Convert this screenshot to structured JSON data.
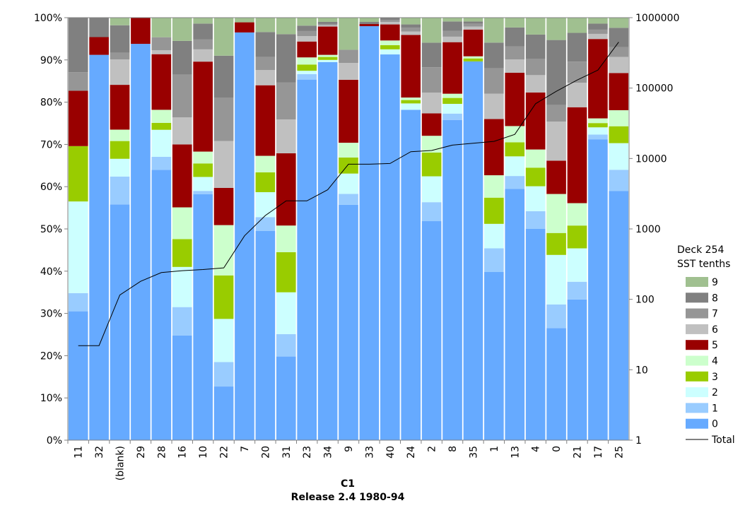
{
  "chart_data": {
    "type": "bar",
    "stacked": "percent",
    "xlabel": "C1",
    "subtitle": "Release 2.4 1980-94",
    "categories": [
      "11",
      "32",
      "(blank)",
      "29",
      "28",
      "16",
      "10",
      "22",
      "7",
      "20",
      "31",
      "23",
      "34",
      "9",
      "33",
      "40",
      "24",
      "2",
      "8",
      "35",
      "1",
      "13",
      "4",
      "0",
      "21",
      "17",
      "25"
    ],
    "legend_title": [
      "Deck 254",
      "SST tenths"
    ],
    "legend_placement": "right",
    "y_left_ticks": [
      "0%",
      "10%",
      "20%",
      "30%",
      "40%",
      "50%",
      "60%",
      "70%",
      "80%",
      "90%",
      "100%"
    ],
    "y_right_ticks": [
      "1",
      "10",
      "100",
      "1000",
      "10000",
      "100000",
      "1000000"
    ],
    "y_right_scale": "log",
    "y_right_lim": [
      1,
      1000000
    ],
    "grid": false,
    "series": [
      {
        "name": "0",
        "color": "#66aaff",
        "values": [
          30.5,
          91.2,
          55.8,
          93.8,
          62.2,
          24.8,
          58.2,
          12.7,
          96.5,
          49.5,
          19.8,
          86.2,
          89.5,
          55.7,
          97.5,
          91.3,
          78.2,
          50.8,
          75.8,
          89.2,
          39.8,
          58.9,
          50.0,
          27.6,
          33.3,
          70.5,
          59.0
        ]
      },
      {
        "name": "1",
        "color": "#99ccff",
        "values": [
          4.3,
          0,
          6.6,
          0,
          3.0,
          6.7,
          0.8,
          5.8,
          0,
          3.3,
          5.3,
          1.3,
          0,
          2.6,
          0,
          0,
          0,
          4.4,
          1.5,
          0,
          5.6,
          3.0,
          4.2,
          5.8,
          4.2,
          1.1,
          5.0
        ]
      },
      {
        "name": "2",
        "color": "#ccffff",
        "values": [
          21.7,
          0,
          4.2,
          0,
          6.2,
          9.5,
          3.3,
          10.2,
          0,
          5.9,
          9.9,
          0.8,
          0.5,
          4.8,
          0,
          1.2,
          1.5,
          6.0,
          2.3,
          0,
          5.8,
          4.6,
          5.9,
          12.2,
          7.9,
          1.7,
          6.3
        ]
      },
      {
        "name": "3",
        "color": "#99cc00",
        "values": [
          13.1,
          0,
          4.2,
          0,
          1.6,
          6.6,
          3.2,
          10.3,
          0,
          4.7,
          9.5,
          1.5,
          0.7,
          3.8,
          0,
          1.0,
          0.8,
          5.5,
          1.4,
          0.7,
          6.2,
          3.3,
          4.4,
          5.4,
          5.4,
          1.0,
          4.0
        ]
      },
      {
        "name": "4",
        "color": "#ccffcc",
        "values": [
          0,
          0,
          2.7,
          0,
          3.0,
          7.5,
          2.8,
          11.9,
          0,
          3.9,
          6.3,
          1.7,
          0.5,
          3.5,
          0,
          1.1,
          0.6,
          3.9,
          1.0,
          0.5,
          5.3,
          3.8,
          4.3,
          9.6,
          5.3,
          1.1,
          3.8
        ]
      },
      {
        "name": "5",
        "color": "#990000",
        "values": [
          13.1,
          4.2,
          10.6,
          6.2,
          12.8,
          14.9,
          21.3,
          8.8,
          2.4,
          16.7,
          17.1,
          3.8,
          6.7,
          14.9,
          0.5,
          3.8,
          14.8,
          5.2,
          12.2,
          6.3,
          13.3,
          12.5,
          13.5,
          8.2,
          22.7,
          18.6,
          8.8
        ]
      },
      {
        "name": "6",
        "color": "#c0c0c0",
        "values": [
          0,
          0,
          6.0,
          0,
          0.9,
          6.4,
          2.9,
          11.1,
          0,
          3.6,
          8.0,
          1.3,
          0.3,
          4.0,
          0,
          0.6,
          0.8,
          4.8,
          1.3,
          0.7,
          6.0,
          3.1,
          4.1,
          9.6,
          5.8,
          1.2,
          3.8
        ]
      },
      {
        "name": "7",
        "color": "#969696",
        "values": [
          4.4,
          0,
          1.6,
          0,
          3.0,
          10.1,
          2.4,
          10.3,
          0,
          3.1,
          8.8,
          1.2,
          0.3,
          3.1,
          0,
          0.5,
          0.9,
          5.9,
          1.4,
          0.7,
          6.0,
          3.1,
          3.9,
          4.1,
          5.0,
          1.0,
          2.3
        ]
      },
      {
        "name": "8",
        "color": "#808080",
        "values": [
          12.9,
          4.6,
          6.5,
          0,
          0,
          8.0,
          3.7,
          9.9,
          0,
          5.9,
          11.4,
          1.3,
          0.5,
          0,
          0.5,
          0.5,
          0.8,
          5.7,
          2.2,
          0.5,
          6.1,
          4.4,
          5.7,
          16.0,
          6.8,
          1.4,
          4.6
        ]
      },
      {
        "name": "9",
        "color": "#a0c090",
        "values": [
          0,
          0,
          1.8,
          0,
          4.5,
          5.5,
          1.4,
          9.0,
          1.1,
          3.4,
          3.9,
          1.9,
          1.0,
          7.6,
          1.0,
          0,
          1.6,
          5.8,
          0.9,
          0.9,
          5.9,
          2.3,
          4.0,
          5.5,
          3.6,
          1.4,
          2.4
        ]
      }
    ],
    "total_series": {
      "name": "Total",
      "color": "#000000",
      "values": [
        22,
        22,
        115,
        180,
        240,
        255,
        265,
        280,
        800,
        1550,
        2500,
        2500,
        3600,
        8300,
        8300,
        8500,
        12500,
        13000,
        15500,
        16500,
        17500,
        22000,
        60000,
        90000,
        130000,
        180000,
        450000
      ]
    }
  }
}
